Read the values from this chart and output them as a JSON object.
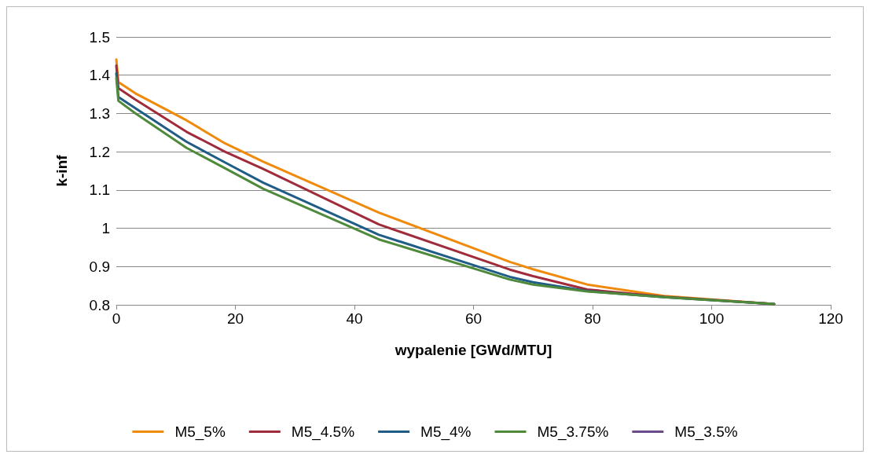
{
  "chart_data": {
    "type": "line",
    "xlabel": "wypalenie [GWd/MTU]",
    "ylabel": "k-inf",
    "xlim": [
      0,
      120
    ],
    "xticks": [
      0,
      20,
      40,
      60,
      80,
      100,
      120
    ],
    "ylim": [
      0.8,
      1.5
    ],
    "yticks": [
      0.8,
      0.9,
      1,
      1.1,
      1.2,
      1.3,
      1.4,
      1.5
    ],
    "grid": "y",
    "legend": "bottom",
    "marker": "none",
    "line_style": "solid",
    "x": [
      0,
      0.35,
      3.15,
      11.8,
      18.25,
      24.7,
      44.1,
      66.1,
      70,
      79.1,
      92,
      110.5
    ],
    "series": [
      {
        "name": "M5_5%",
        "color": "#f08a0c",
        "values": [
          1.441,
          1.382,
          1.353,
          1.282,
          1.222,
          1.174,
          1.041,
          0.912,
          0.893,
          0.853,
          0.823,
          0.802
        ]
      },
      {
        "name": "M5_4.5%",
        "color": "#a02b3a",
        "values": [
          1.425,
          1.366,
          1.337,
          1.252,
          1.2,
          1.155,
          1.01,
          0.892,
          0.875,
          0.84,
          0.821,
          0.802
        ]
      },
      {
        "name": "M5_4%",
        "color": "#1f5c86",
        "values": [
          1.405,
          1.343,
          1.314,
          1.226,
          1.172,
          1.119,
          0.983,
          0.873,
          0.859,
          0.836,
          0.82,
          0.802
        ]
      },
      {
        "name": "M5_3.75%",
        "color": "#4e8a3a",
        "values": [
          1.393,
          1.333,
          1.301,
          1.21,
          1.157,
          1.103,
          0.971,
          0.866,
          0.853,
          0.835,
          0.82,
          0.802
        ]
      },
      {
        "name": "M5_3.5%",
        "color": "#6a4a8a",
        "values": [
          null,
          null,
          null,
          null,
          null,
          null,
          null,
          null,
          null,
          null,
          null,
          null
        ]
      }
    ]
  }
}
